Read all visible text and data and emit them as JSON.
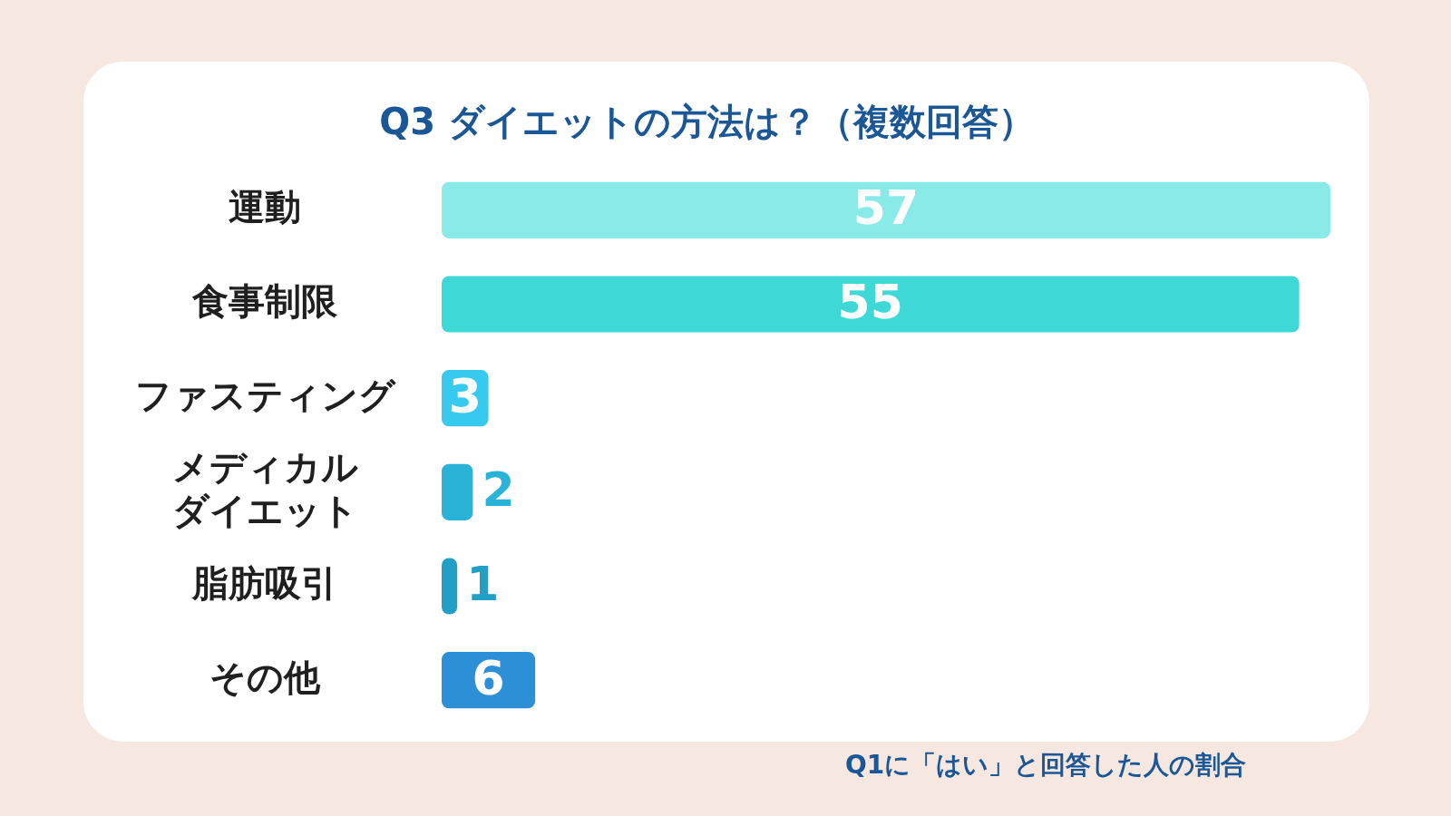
{
  "chart_data": {
    "type": "bar",
    "orientation": "horizontal",
    "title": "Q3 ダイエットの方法は？（複数回答）",
    "categories": [
      "運動",
      "食事制限",
      "ファスティング",
      "メディカルダイエット",
      "脂肪吸引",
      "その他"
    ],
    "values": [
      57,
      55,
      3,
      2,
      1,
      6
    ],
    "colors": [
      "#8aeae8",
      "#3ed9d6",
      "#38c9ee",
      "#2bb3d7",
      "#239fc6",
      "#2d8fd6"
    ],
    "data_labels": true,
    "grid": false,
    "legend": false,
    "tick_labels": "y",
    "annotations": [
      "Q1に「はい」と回答した人の割合"
    ]
  }
}
